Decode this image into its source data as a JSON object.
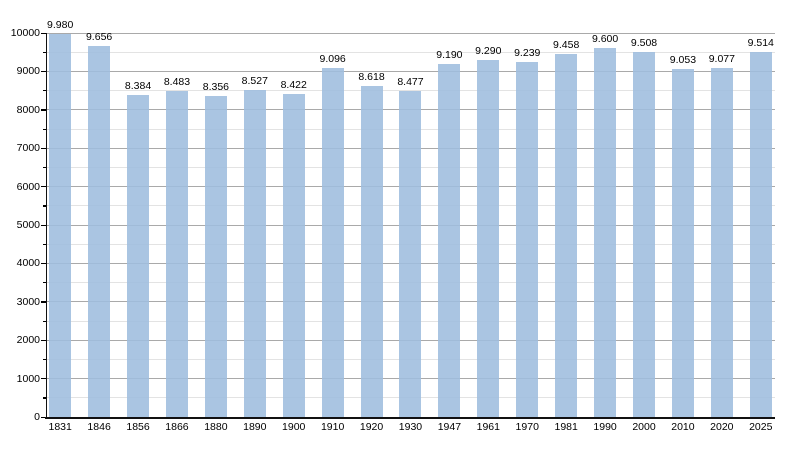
{
  "chart_data": {
    "type": "bar",
    "title": "",
    "xlabel": "",
    "ylabel": "",
    "categories": [
      "1831",
      "1846",
      "1856",
      "1866",
      "1880",
      "1890",
      "1900",
      "1910",
      "1920",
      "1930",
      "1947",
      "1961",
      "1970",
      "1981",
      "1990",
      "2000",
      "2010",
      "2020",
      "2025"
    ],
    "values": [
      9980,
      9656,
      8384,
      8483,
      8356,
      8527,
      8422,
      9096,
      8618,
      8477,
      9190,
      9290,
      9239,
      9458,
      9600,
      9508,
      9053,
      9077,
      9514
    ],
    "value_labels": [
      "9.980",
      "9.656",
      "8.384",
      "8.483",
      "8.356",
      "8.527",
      "8.422",
      "9.096",
      "8.618",
      "8.477",
      "9.190",
      "9.290",
      "9.239",
      "9.458",
      "9.600",
      "9.508",
      "9.053",
      "9.077",
      "9.514"
    ],
    "ylim": [
      0,
      10000
    ],
    "y_major_step": 1000,
    "y_minor_step": 500,
    "y_tick_labels": [
      "0",
      "1000",
      "2000",
      "3000",
      "4000",
      "5000",
      "6000",
      "7000",
      "8000",
      "9000",
      "10000"
    ],
    "grid": true,
    "legend": false,
    "colors": {
      "bar_fill": "#a9c6e2",
      "grid_major": "#a9a9a9",
      "grid_minor": "#e3e3e3",
      "axis": "#111111",
      "text": "#000000",
      "background": "#ffffff"
    }
  }
}
